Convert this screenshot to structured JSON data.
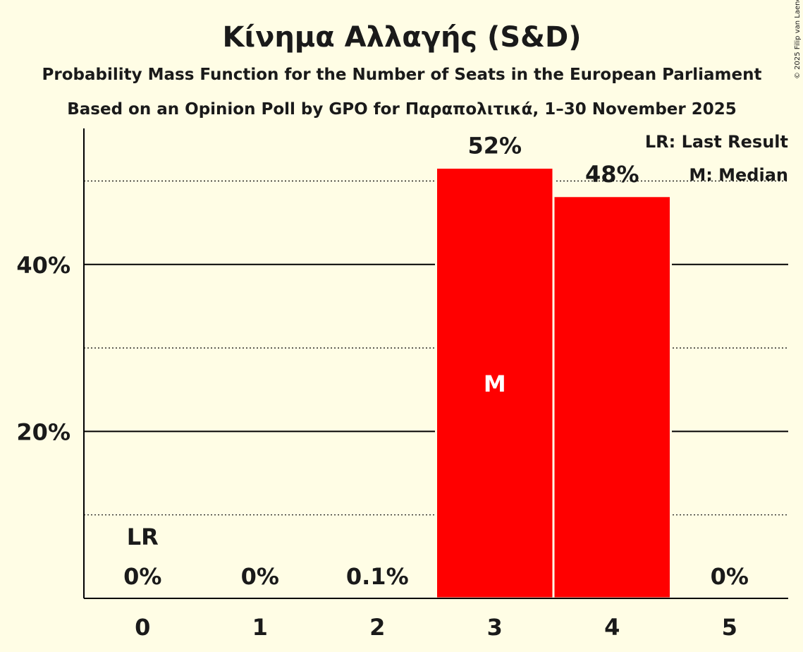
{
  "chart_data": {
    "type": "bar",
    "title": "Κίνημα Αλλαγής (S&D)",
    "subtitle1": "Probability Mass Function for the Number of Seats in the European Parliament",
    "subtitle2": "Based on an Opinion Poll by GPO for Παραπολιτικά, 1–30 November 2025",
    "copyright": "© 2025 Filip van Laenen",
    "categories": [
      "0",
      "1",
      "2",
      "3",
      "4",
      "5"
    ],
    "values": [
      0,
      0,
      0.1,
      51.6,
      48.2,
      0
    ],
    "value_labels": [
      "0%",
      "0%",
      "0.1%",
      "52%",
      "48%",
      "0%"
    ],
    "ylim": [
      0,
      56
    ],
    "yticks": [
      {
        "value": 20,
        "label": "20%"
      },
      {
        "value": 40,
        "label": "40%"
      }
    ],
    "minor_gridlines": [
      10,
      30,
      50
    ],
    "bar_color": "#ff0000",
    "last_result_index": 0,
    "last_result_label": "LR",
    "median_index": 3,
    "median_label": "M",
    "legend": [
      "LR: Last Result",
      "M: Median"
    ],
    "legend_position": "top-right"
  }
}
